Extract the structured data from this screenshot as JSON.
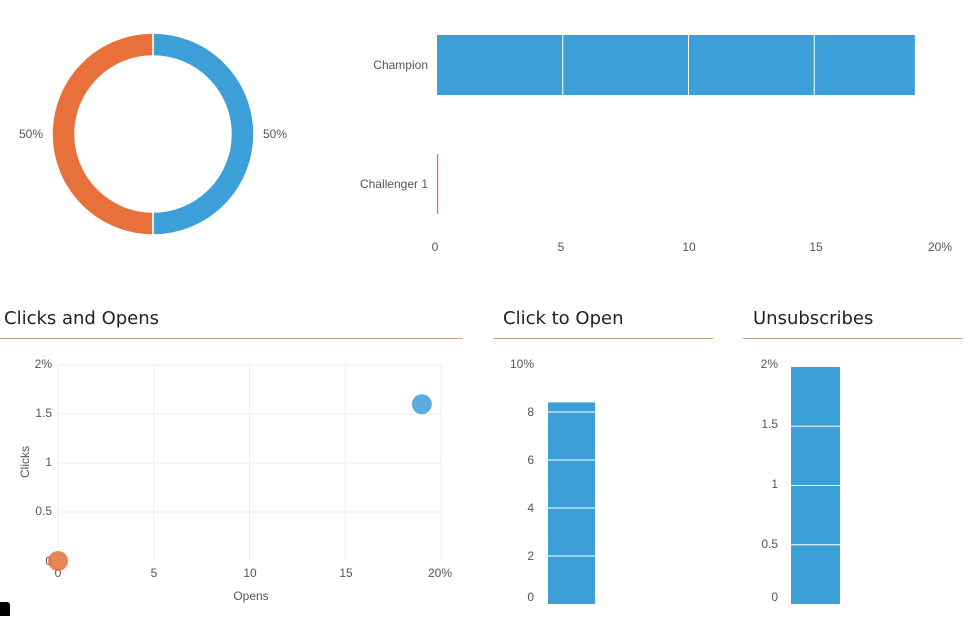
{
  "colors": {
    "blue": "#3d9fd8",
    "orange": "#e8703a",
    "grid": "#eeeeee",
    "rule": "#c8a37f"
  },
  "sections": {
    "clicks_opens_title": "Clicks and Opens",
    "click_to_open_title": "Click to Open",
    "unsubscribes_title": "Unsubscribes"
  },
  "chart_data": [
    {
      "type": "pie",
      "variant": "donut",
      "slices": [
        {
          "label": "50%",
          "value": 50,
          "color": "#3d9fd8"
        },
        {
          "label": "50%",
          "value": 50,
          "color": "#e8703a"
        }
      ]
    },
    {
      "type": "bar",
      "orientation": "horizontal",
      "categories": [
        "Champion",
        "Challenger 1"
      ],
      "values": [
        19,
        0
      ],
      "colors": [
        "#3d9fd8",
        "#e8703a"
      ],
      "xlim": [
        0,
        20
      ],
      "xticks": [
        "0",
        "5",
        "10",
        "15",
        "20%"
      ]
    },
    {
      "type": "scatter",
      "title": "Clicks and Opens",
      "xlabel": "Opens",
      "ylabel": "Clicks",
      "xlim": [
        0,
        20
      ],
      "ylim": [
        0,
        2
      ],
      "xticks": [
        "0",
        "5",
        "10",
        "15",
        "20%"
      ],
      "yticks": [
        "0",
        "0.5",
        "1",
        "1.5",
        "2%"
      ],
      "points": [
        {
          "x": 19,
          "y": 1.6,
          "color": "#3d9fd8"
        },
        {
          "x": 0,
          "y": 0,
          "color": "#e8703a"
        }
      ],
      "grid": true
    },
    {
      "type": "bar",
      "title": "Click to Open",
      "categories": [
        ""
      ],
      "values": [
        8.4
      ],
      "ylim": [
        0,
        10
      ],
      "yticks": [
        "0",
        "2",
        "4",
        "6",
        "8",
        "10%"
      ]
    },
    {
      "type": "bar",
      "title": "Unsubscribes",
      "categories": [
        ""
      ],
      "values": [
        2
      ],
      "ylim": [
        0,
        2
      ],
      "yticks": [
        "0",
        "0.5",
        "1",
        "1.5",
        "2%"
      ]
    }
  ]
}
